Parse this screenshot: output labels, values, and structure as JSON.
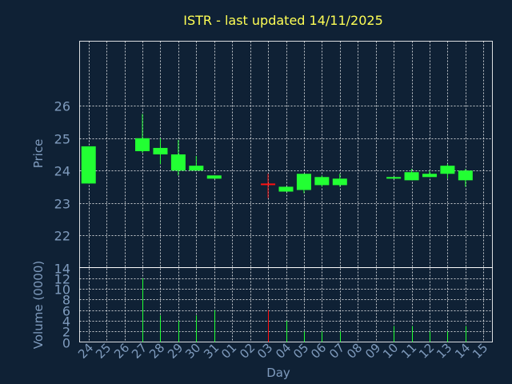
{
  "chart_data": {
    "type": "candlestick",
    "title": "ISTR - last updated 14/11/2025",
    "xlabel": "Day",
    "ylabel_price": "Price",
    "ylabel_volume": "Volume (0000)",
    "price_yticks": [
      22,
      23,
      24,
      25,
      26
    ],
    "price_ylim": [
      21,
      28
    ],
    "volume_yticks": [
      0,
      2,
      4,
      6,
      8,
      10,
      12,
      14
    ],
    "volume_ylim": [
      0,
      14
    ],
    "x_tick_labels": [
      "24",
      "25",
      "26",
      "27",
      "28",
      "29",
      "30",
      "31",
      "01",
      "02",
      "03",
      "04",
      "05",
      "06",
      "07",
      "08",
      "09",
      "10",
      "11",
      "12",
      "13",
      "14",
      "15"
    ],
    "grid": true,
    "colors": {
      "background": "#0f2135",
      "up": "#22ff33",
      "down": "#ff1111",
      "title": "#ffff55",
      "text": "#7f9bbd"
    },
    "candles": [
      {
        "x": 0,
        "open": 23.6,
        "high": 24.75,
        "low": 23.6,
        "close": 24.75,
        "volume": 0
      },
      {
        "x": 3,
        "open": 24.6,
        "high": 25.75,
        "low": 24.55,
        "close": 25.0,
        "volume": 12
      },
      {
        "x": 4,
        "open": 24.5,
        "high": 25.0,
        "low": 24.2,
        "close": 24.7,
        "volume": 5
      },
      {
        "x": 5,
        "open": 24.0,
        "high": 24.95,
        "low": 23.85,
        "close": 24.5,
        "volume": 4
      },
      {
        "x": 6,
        "open": 24.0,
        "high": 24.45,
        "low": 24.0,
        "close": 24.15,
        "volume": 5
      },
      {
        "x": 7,
        "open": 23.75,
        "high": 23.85,
        "low": 23.75,
        "close": 23.85,
        "volume": 6
      },
      {
        "x": 10,
        "open": 23.6,
        "high": 23.9,
        "low": 23.15,
        "close": 23.55,
        "volume": 6
      },
      {
        "x": 11,
        "open": 23.35,
        "high": 23.5,
        "low": 23.35,
        "close": 23.5,
        "volume": 4
      },
      {
        "x": 12,
        "open": 23.4,
        "high": 23.9,
        "low": 23.3,
        "close": 23.9,
        "volume": 2
      },
      {
        "x": 13,
        "open": 23.55,
        "high": 23.85,
        "low": 23.5,
        "close": 23.8,
        "volume": 2
      },
      {
        "x": 14,
        "open": 23.55,
        "high": 23.9,
        "low": 23.5,
        "close": 23.75,
        "volume": 2
      },
      {
        "x": 17,
        "open": 23.75,
        "high": 23.8,
        "low": 23.75,
        "close": 23.8,
        "volume": 3
      },
      {
        "x": 18,
        "open": 23.7,
        "high": 24.05,
        "low": 23.7,
        "close": 23.95,
        "volume": 3
      },
      {
        "x": 19,
        "open": 23.8,
        "high": 24.0,
        "low": 23.8,
        "close": 23.9,
        "volume": 2
      },
      {
        "x": 20,
        "open": 23.9,
        "high": 24.2,
        "low": 23.75,
        "close": 24.15,
        "volume": 2
      },
      {
        "x": 21,
        "open": 23.7,
        "high": 24.05,
        "low": 23.5,
        "close": 24.0,
        "volume": 3
      }
    ]
  }
}
